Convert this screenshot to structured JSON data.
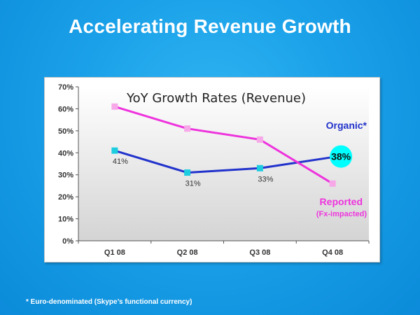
{
  "slide": {
    "title": "Accelerating Revenue Growth",
    "footnote": "* Euro-denominated (Skype’s functional currency)"
  },
  "chart_data": {
    "type": "line",
    "title": "YoY Growth Rates (Revenue)",
    "categories": [
      "Q1 08",
      "Q2 08",
      "Q3 08",
      "Q4 08"
    ],
    "ylim": [
      0,
      70
    ],
    "yticks": [
      0,
      10,
      20,
      30,
      40,
      50,
      60,
      70
    ],
    "ytick_labels": [
      "0%",
      "10%",
      "20%",
      "30%",
      "40%",
      "50%",
      "60%",
      "70%"
    ],
    "grid": false,
    "series": [
      {
        "name": "Organic*",
        "values": [
          41,
          31,
          33,
          38
        ],
        "data_labels": [
          "41%",
          "31%",
          "33%",
          "38%"
        ],
        "color": "#2233cc",
        "marker_color": "#1ccde0"
      },
      {
        "name": "Reported",
        "subtitle": "(Fx-impacted)",
        "values": [
          61,
          51,
          46,
          26
        ],
        "data_labels": [],
        "color": "#ee33dd",
        "marker_color": "#f7a8e8"
      }
    ],
    "highlight": {
      "series": 0,
      "point": 3,
      "label": "38%",
      "color": "#00ffff"
    },
    "background": "#d9d9d9"
  }
}
